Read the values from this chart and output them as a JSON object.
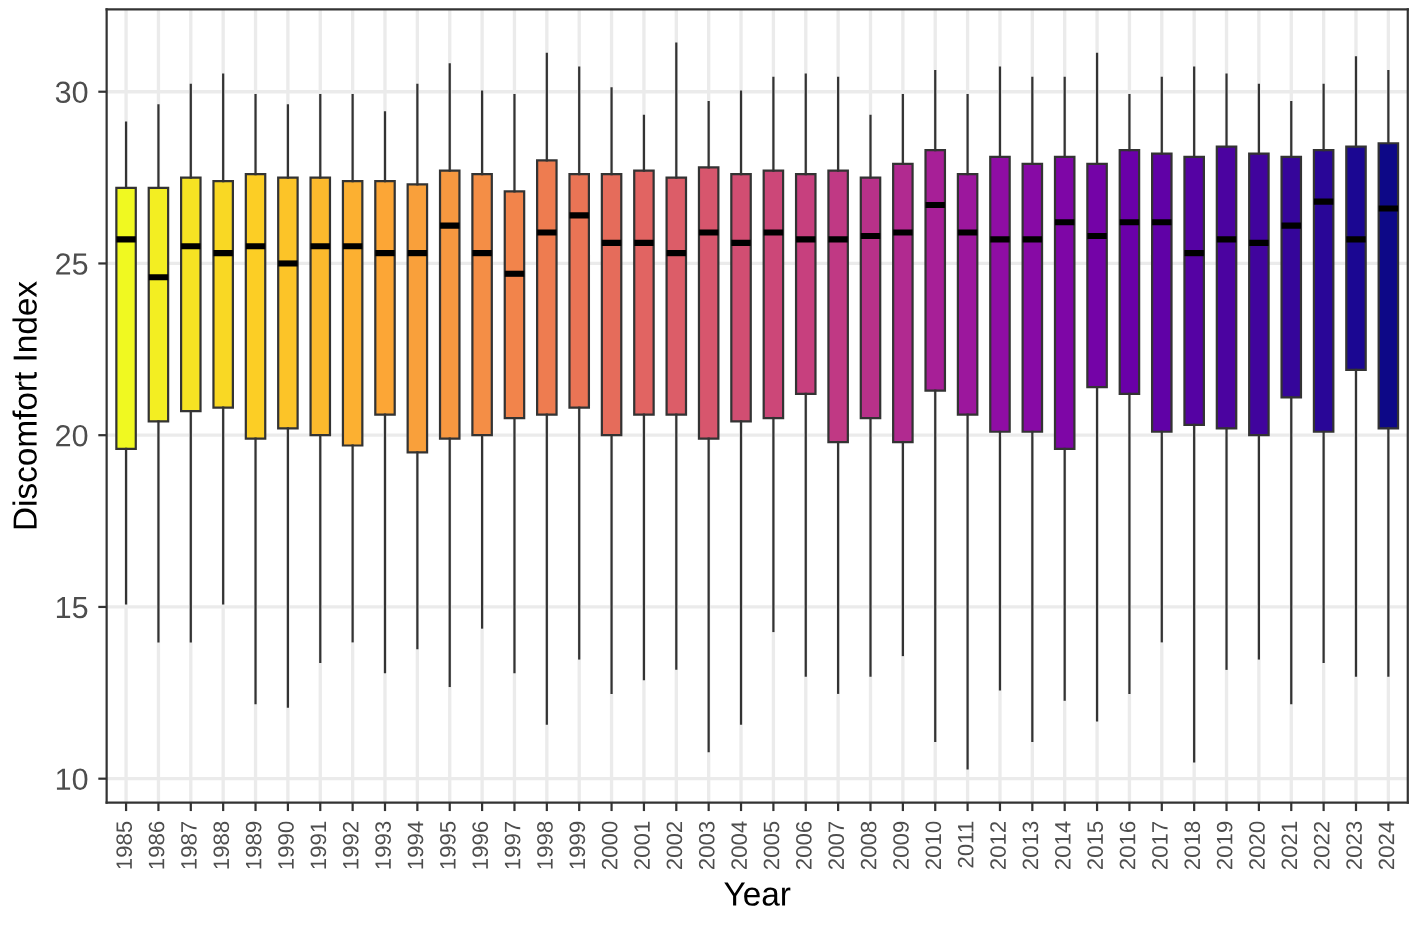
{
  "chart_data": {
    "type": "box",
    "xlabel": "Year",
    "ylabel": "Discomfort Index",
    "categories": [
      "1985",
      "1986",
      "1987",
      "1988",
      "1989",
      "1990",
      "1991",
      "1992",
      "1993",
      "1994",
      "1995",
      "1996",
      "1997",
      "1998",
      "1999",
      "2000",
      "2001",
      "2002",
      "2003",
      "2004",
      "2005",
      "2006",
      "2007",
      "2008",
      "2009",
      "2010",
      "2011",
      "2012",
      "2013",
      "2014",
      "2015",
      "2016",
      "2017",
      "2018",
      "2019",
      "2020",
      "2021",
      "2022",
      "2023",
      "2024"
    ],
    "boxes": [
      {
        "low": 15.1,
        "q1": 19.6,
        "median": 25.7,
        "q3": 27.2,
        "high": 29.1
      },
      {
        "low": 14.0,
        "q1": 20.4,
        "median": 24.6,
        "q3": 27.2,
        "high": 29.6
      },
      {
        "low": 14.0,
        "q1": 20.7,
        "median": 25.5,
        "q3": 27.5,
        "high": 30.2
      },
      {
        "low": 15.1,
        "q1": 20.8,
        "median": 25.3,
        "q3": 27.4,
        "high": 30.5
      },
      {
        "low": 12.2,
        "q1": 19.9,
        "median": 25.5,
        "q3": 27.6,
        "high": 29.9
      },
      {
        "low": 12.1,
        "q1": 20.2,
        "median": 25.0,
        "q3": 27.5,
        "high": 29.6
      },
      {
        "low": 13.4,
        "q1": 20.0,
        "median": 25.5,
        "q3": 27.5,
        "high": 29.9
      },
      {
        "low": 14.0,
        "q1": 19.7,
        "median": 25.5,
        "q3": 27.4,
        "high": 29.9
      },
      {
        "low": 13.1,
        "q1": 20.6,
        "median": 25.3,
        "q3": 27.4,
        "high": 29.4
      },
      {
        "low": 13.8,
        "q1": 19.5,
        "median": 25.3,
        "q3": 27.3,
        "high": 30.2
      },
      {
        "low": 12.7,
        "q1": 19.9,
        "median": 26.1,
        "q3": 27.7,
        "high": 30.8
      },
      {
        "low": 14.4,
        "q1": 20.0,
        "median": 25.3,
        "q3": 27.6,
        "high": 30.0
      },
      {
        "low": 13.1,
        "q1": 20.5,
        "median": 24.7,
        "q3": 27.1,
        "high": 29.9
      },
      {
        "low": 11.6,
        "q1": 20.6,
        "median": 25.9,
        "q3": 28.0,
        "high": 31.1
      },
      {
        "low": 13.5,
        "q1": 20.8,
        "median": 26.4,
        "q3": 27.6,
        "high": 30.7
      },
      {
        "low": 12.5,
        "q1": 20.0,
        "median": 25.6,
        "q3": 27.6,
        "high": 30.1
      },
      {
        "low": 12.9,
        "q1": 20.6,
        "median": 25.6,
        "q3": 27.7,
        "high": 29.3
      },
      {
        "low": 13.2,
        "q1": 20.6,
        "median": 25.3,
        "q3": 27.5,
        "high": 31.4
      },
      {
        "low": 10.8,
        "q1": 19.9,
        "median": 25.9,
        "q3": 27.8,
        "high": 29.7
      },
      {
        "low": 11.6,
        "q1": 20.4,
        "median": 25.6,
        "q3": 27.6,
        "high": 30.0
      },
      {
        "low": 14.3,
        "q1": 20.5,
        "median": 25.9,
        "q3": 27.7,
        "high": 30.4
      },
      {
        "low": 13.0,
        "q1": 21.2,
        "median": 25.7,
        "q3": 27.6,
        "high": 30.5
      },
      {
        "low": 12.5,
        "q1": 19.8,
        "median": 25.7,
        "q3": 27.7,
        "high": 30.4
      },
      {
        "low": 13.0,
        "q1": 20.5,
        "median": 25.8,
        "q3": 27.5,
        "high": 29.3
      },
      {
        "low": 13.6,
        "q1": 19.8,
        "median": 25.9,
        "q3": 27.9,
        "high": 29.9
      },
      {
        "low": 11.1,
        "q1": 21.3,
        "median": 26.7,
        "q3": 28.3,
        "high": 30.6
      },
      {
        "low": 10.3,
        "q1": 20.6,
        "median": 25.9,
        "q3": 27.6,
        "high": 29.9
      },
      {
        "low": 12.6,
        "q1": 20.1,
        "median": 25.7,
        "q3": 28.1,
        "high": 30.7
      },
      {
        "low": 11.1,
        "q1": 20.1,
        "median": 25.7,
        "q3": 27.9,
        "high": 30.4
      },
      {
        "low": 12.3,
        "q1": 19.6,
        "median": 26.2,
        "q3": 28.1,
        "high": 30.4
      },
      {
        "low": 11.7,
        "q1": 21.4,
        "median": 25.8,
        "q3": 27.9,
        "high": 31.1
      },
      {
        "low": 12.5,
        "q1": 21.2,
        "median": 26.2,
        "q3": 28.3,
        "high": 29.9
      },
      {
        "low": 14.0,
        "q1": 20.1,
        "median": 26.2,
        "q3": 28.2,
        "high": 30.4
      },
      {
        "low": 10.5,
        "q1": 20.3,
        "median": 25.3,
        "q3": 28.1,
        "high": 30.7
      },
      {
        "low": 13.2,
        "q1": 20.2,
        "median": 25.7,
        "q3": 28.4,
        "high": 30.5
      },
      {
        "low": 13.5,
        "q1": 20.0,
        "median": 25.6,
        "q3": 28.2,
        "high": 30.2
      },
      {
        "low": 12.2,
        "q1": 21.1,
        "median": 26.1,
        "q3": 28.1,
        "high": 29.7
      },
      {
        "low": 13.4,
        "q1": 20.1,
        "median": 26.8,
        "q3": 28.3,
        "high": 30.2
      },
      {
        "low": 13.0,
        "q1": 21.9,
        "median": 25.7,
        "q3": 28.4,
        "high": 31.0
      },
      {
        "low": 13.0,
        "q1": 20.2,
        "median": 26.6,
        "q3": 28.5,
        "high": 30.6
      }
    ],
    "colors": [
      "#f0f921",
      "#f3ee22",
      "#f6e323",
      "#f9d824",
      "#fcce25",
      "#fcc428",
      "#fcba2d",
      "#fcb031",
      "#fca636",
      "#f9a03b",
      "#f79840",
      "#f48e46",
      "#f2844b",
      "#ee7c50",
      "#ea7455",
      "#e56c5b",
      "#e16462",
      "#dc5d68",
      "#d7566d",
      "#d14e72",
      "#cc4778",
      "#c7407e",
      "#c03984",
      "#b83189",
      "#b12a90",
      "#a71f97",
      "#9c179d",
      "#8f0da4",
      "#870aa5",
      "#7e06a6",
      "#7403a7",
      "#6a00a8",
      "#6001a6",
      "#5502a3",
      "#4b03a0",
      "#41049d",
      "#35059a",
      "#290697",
      "#1b0792",
      "#0d0887"
    ],
    "ylim": [
      9.3,
      32.4
    ],
    "yticks": [
      10,
      15,
      20,
      25,
      30
    ],
    "grid": true
  }
}
